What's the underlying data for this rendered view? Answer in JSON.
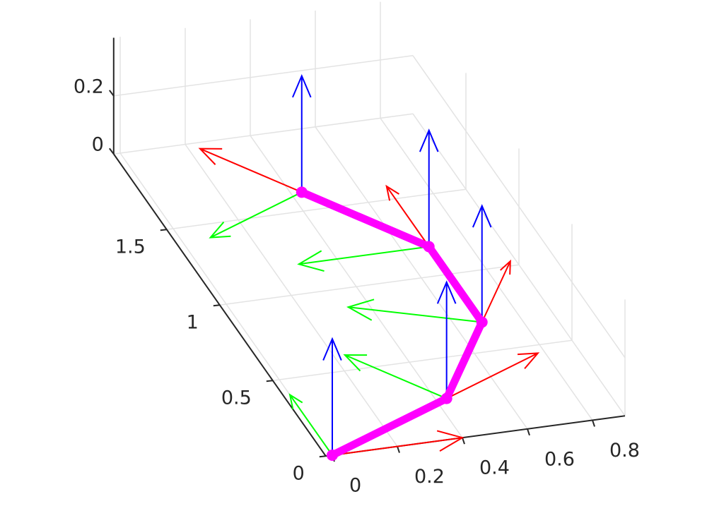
{
  "chart_data": {
    "type": "line3d",
    "x": [
      0,
      0.433,
      0.683,
      0.683,
      0.433
    ],
    "y": [
      0,
      0.25,
      0.683,
      1.183,
      1.616
    ],
    "z": [
      0,
      0,
      0,
      0,
      0
    ],
    "color": "#ff00ff",
    "quivers": [
      {
        "color": "#ff0000",
        "u": [
          0.4,
          0.346,
          0.2,
          0,
          -0.2
        ],
        "v": [
          0,
          0.2,
          0.346,
          0.4,
          0.346
        ],
        "w": [
          0,
          0,
          0,
          0,
          0
        ]
      },
      {
        "color": "#00ff00",
        "u": [
          0,
          -0.2,
          -0.346,
          -0.4,
          -0.346
        ],
        "v": [
          0.4,
          0.346,
          0.2,
          0,
          -0.2
        ],
        "w": [
          0,
          0,
          0,
          0,
          0
        ]
      },
      {
        "color": "#0000ff",
        "u": [
          0,
          0,
          0,
          0,
          0
        ],
        "v": [
          0,
          0,
          0,
          0,
          0
        ],
        "w": [
          0.4,
          0.4,
          0.4,
          0.4,
          0.4
        ]
      }
    ],
    "xlim": [
      -0.02,
      0.9
    ],
    "ylim": [
      0,
      2
    ],
    "zlim": [
      0,
      0.4
    ],
    "xticks": [
      0,
      0.2,
      0.4,
      0.6,
      0.8
    ],
    "yticks": [
      0,
      0.5,
      1,
      1.5
    ],
    "zticks": [
      0,
      0.2
    ],
    "grid": true
  }
}
